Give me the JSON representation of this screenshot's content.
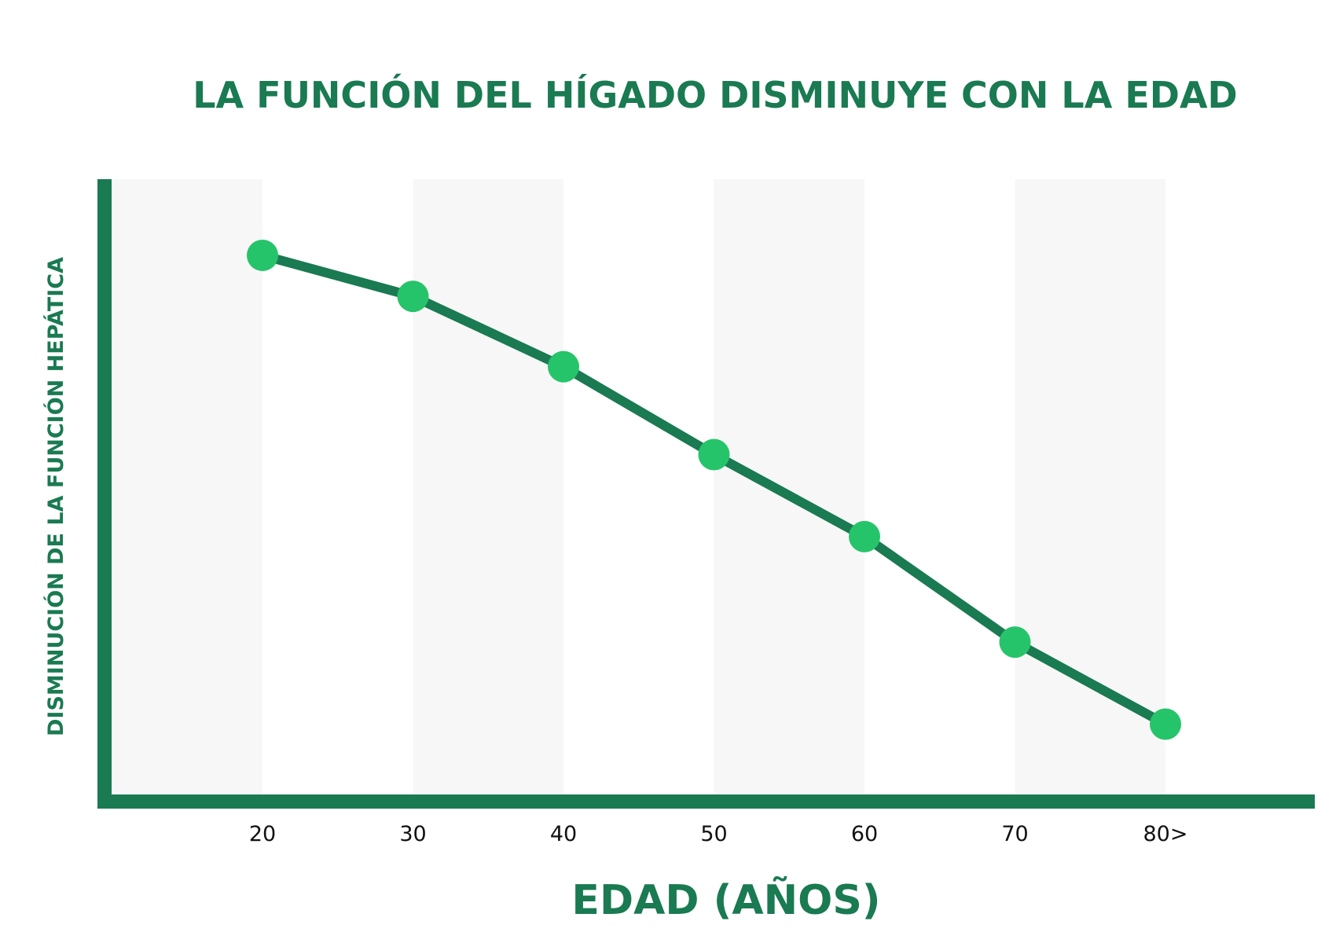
{
  "colors": {
    "dark_green": "#1a7a52",
    "point_green": "#26c46a",
    "band": "#f7f7f7",
    "tick_text": "#111111"
  },
  "chart_data": {
    "type": "line",
    "title": "LA FUNCIÓN DEL HÍGADO DISMINUYE CON LA EDAD",
    "xlabel": "EDAD (AÑOS)",
    "ylabel": "DISMINUCIÓN DE LA FUNCIÓN HEPÁTICA",
    "categories": [
      "20",
      "30",
      "40",
      "50",
      "60",
      "70",
      "80>"
    ],
    "series": [
      {
        "values": [
          87,
          80,
          68,
          53,
          39,
          21,
          7
        ]
      }
    ],
    "ylim": [
      -5,
      100
    ],
    "grid": false,
    "legend": "none"
  }
}
